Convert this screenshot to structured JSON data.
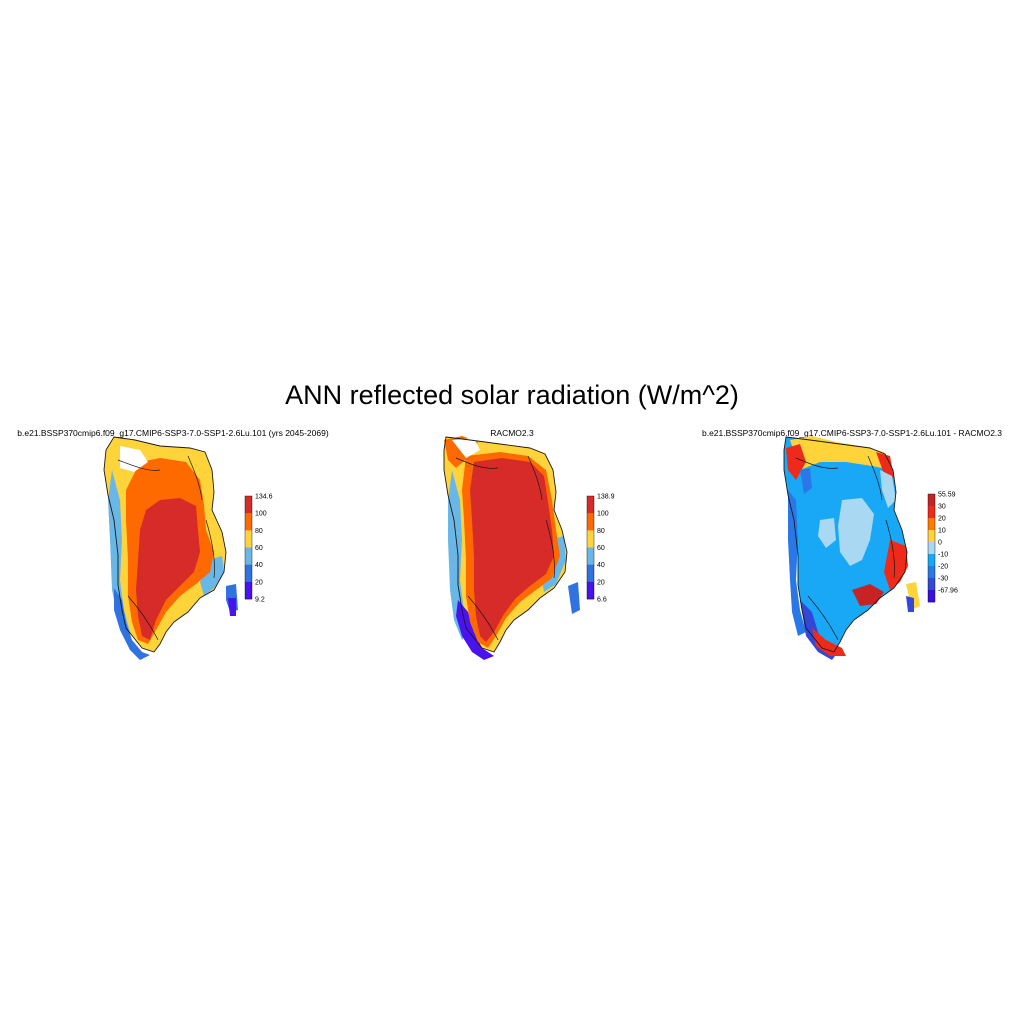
{
  "title": "ANN reflected solar radiation (W/m^2)",
  "panels": [
    {
      "title": "b.e21.BSSP370cmip6.f09_g17.CMIP6-SSP3-7.0-SSP1-2.6Lu.101 (yrs 2045-2069)",
      "colorbar": {
        "labels": [
          "134.6",
          "100",
          "80",
          "60",
          "40",
          "20",
          "9.2"
        ],
        "colors": [
          "#d62b28",
          "#ff6a00",
          "#ffd43a",
          "#69b7e6",
          "#2f72e0",
          "#4b12f0"
        ]
      }
    },
    {
      "title": "RACMO2.3",
      "colorbar": {
        "labels": [
          "138.9",
          "100",
          "80",
          "60",
          "40",
          "20",
          "6.6"
        ],
        "colors": [
          "#d62b28",
          "#ff6a00",
          "#ffd43a",
          "#69b7e6",
          "#2f72e0",
          "#4b12f0"
        ]
      }
    },
    {
      "title": "b.e21.BSSP370cmip6.f09_g17.CMIP6-SSP3-7.0-SSP1-2.6Lu.101 - RACMO2.3",
      "colorbar": {
        "labels": [
          "55.59",
          "30",
          "20",
          "10",
          "0",
          "-10",
          "-20",
          "-30",
          "-67.96"
        ],
        "colors": [
          "#c62424",
          "#ef2a1a",
          "#ff7a00",
          "#ffd43a",
          "#a8d8f2",
          "#18a8f5",
          "#2a78e8",
          "#3448d8",
          "#3a10e0"
        ]
      }
    }
  ]
}
